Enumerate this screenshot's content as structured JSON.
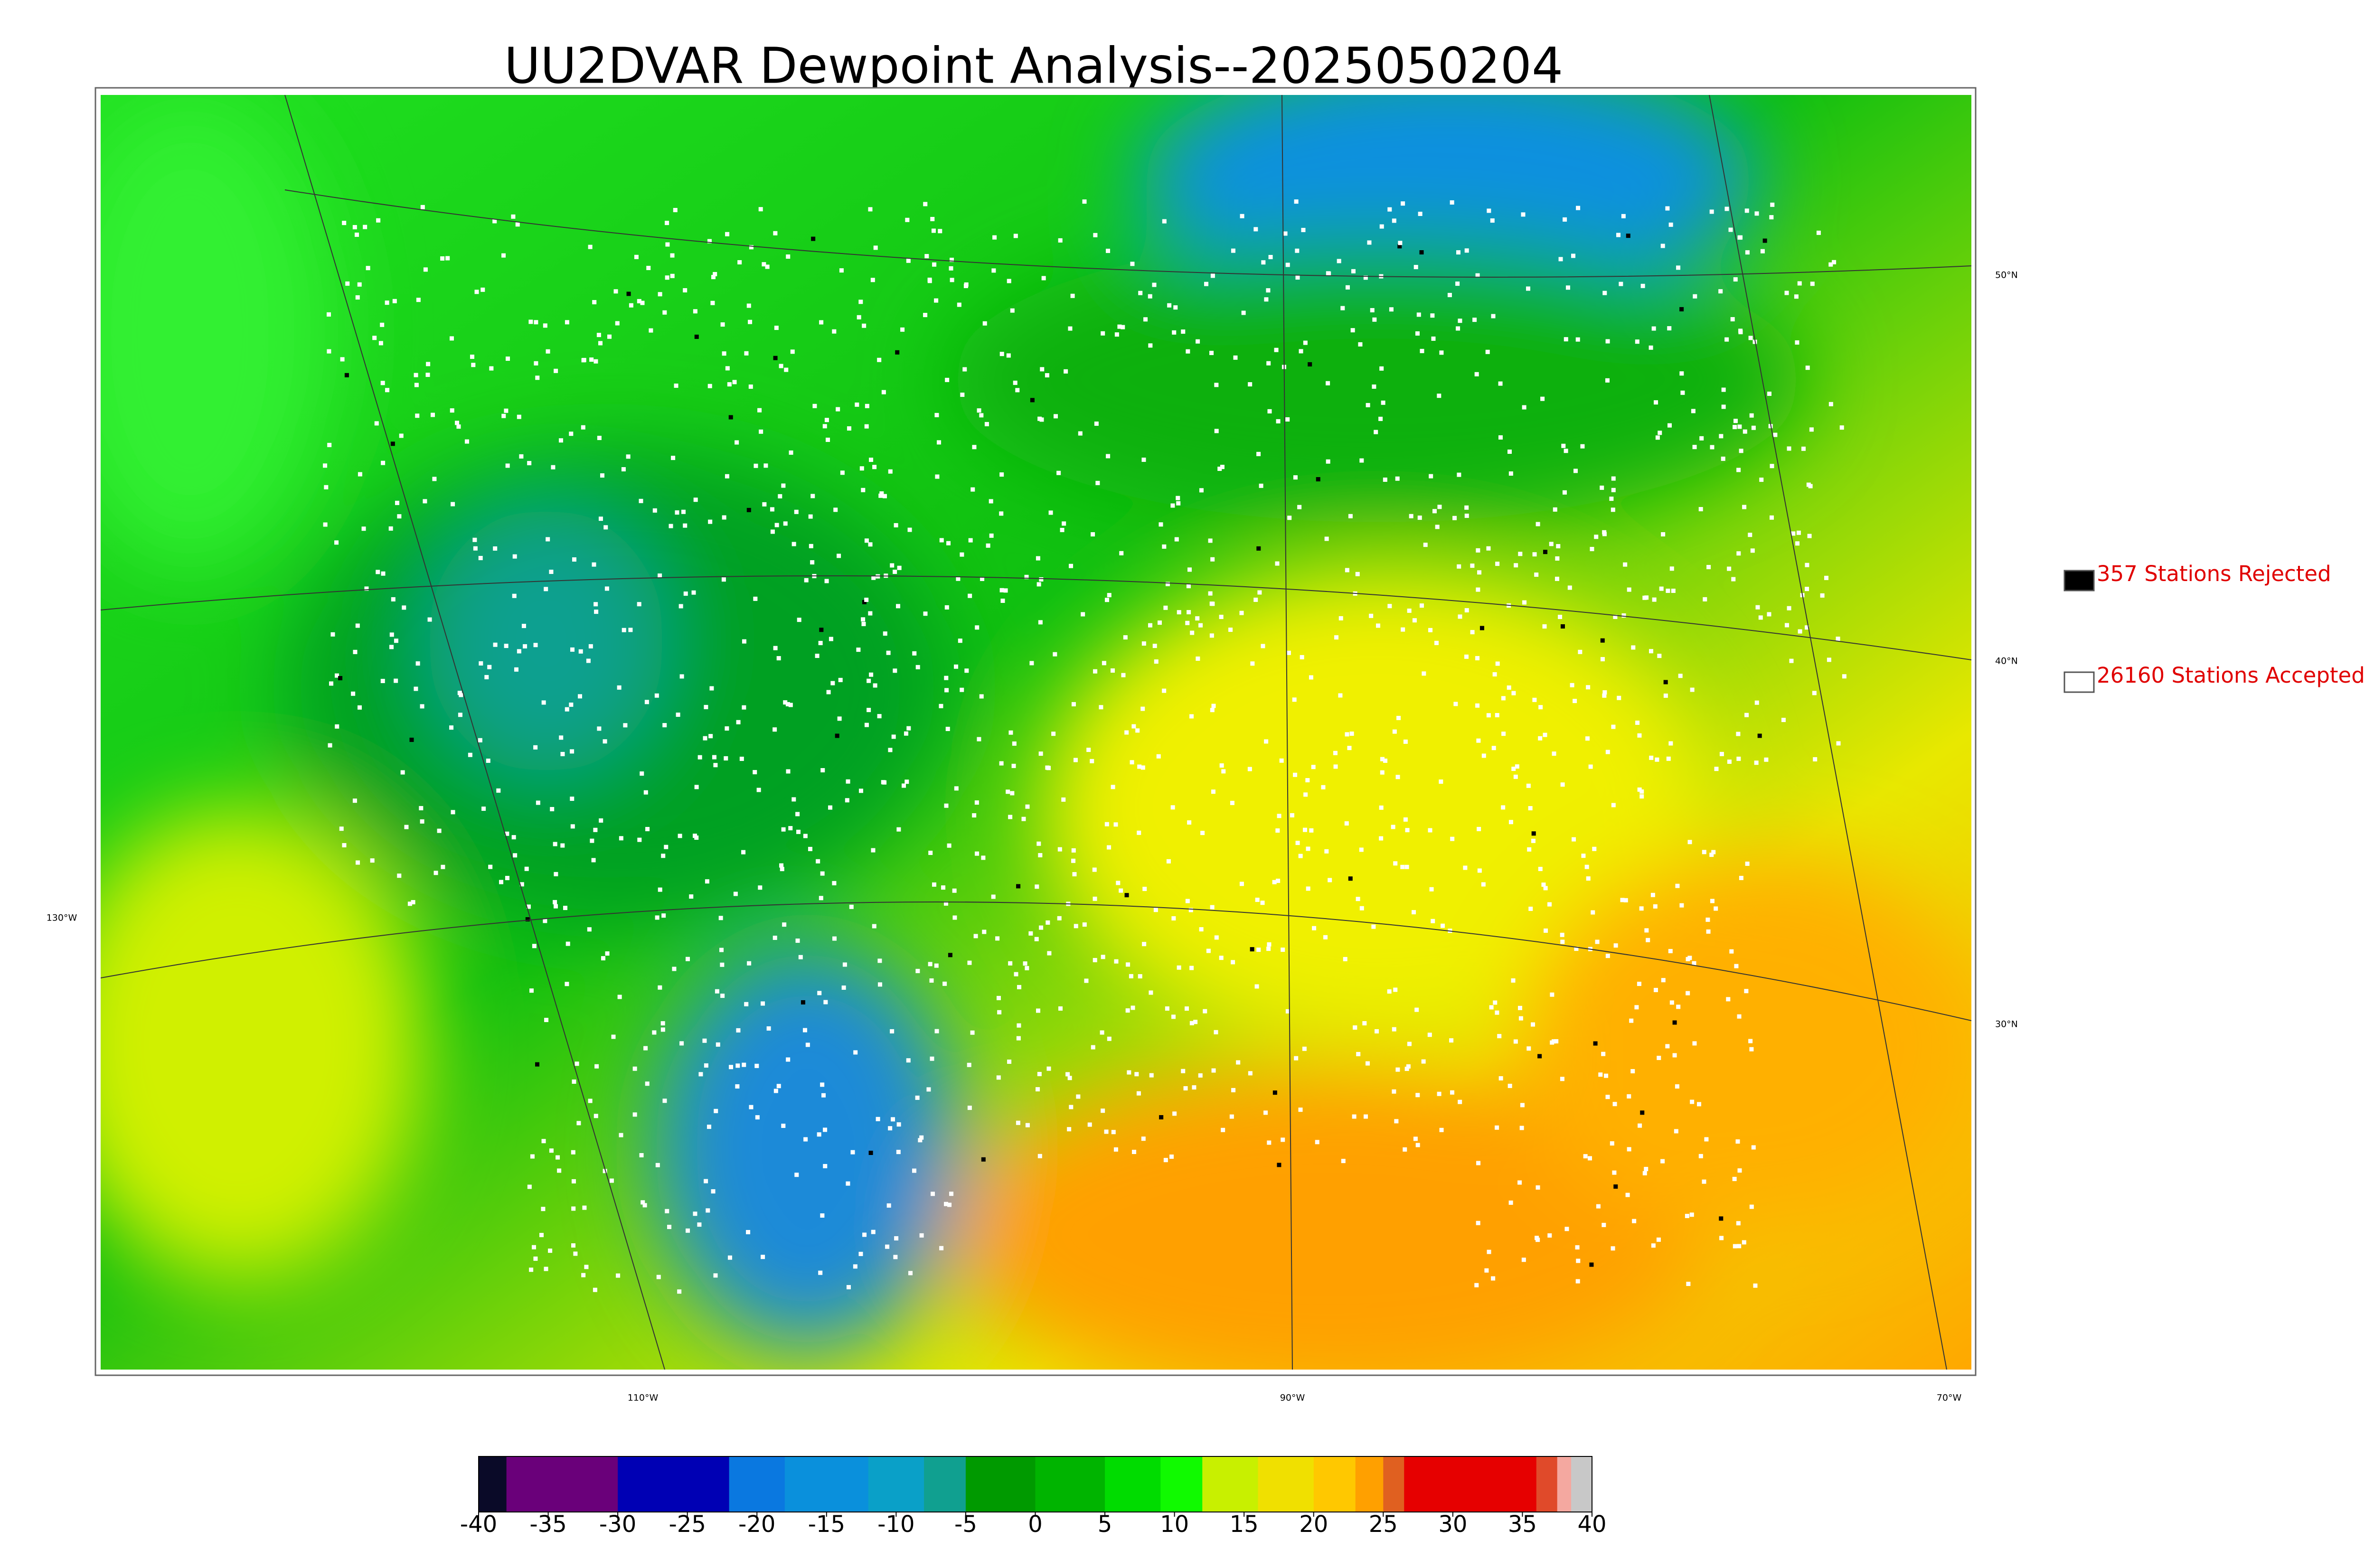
{
  "title": "UU2DVAR Dewpoint Analysis--2025050204",
  "legend": [
    {
      "label": "357 Stations Rejected",
      "color": "#000000"
    },
    {
      "label": "26160 Stations Accepted",
      "color": "#ffffff"
    }
  ],
  "graticule": {
    "lat_labels": [
      "50°N",
      "40°N",
      "30°N"
    ],
    "lon_labels": [
      "130°W",
      "110°W",
      "90°W",
      "70°W"
    ]
  },
  "colorbar": {
    "range": [
      -40,
      40
    ],
    "ticks": [
      -40,
      -35,
      -30,
      -25,
      -20,
      -15,
      -10,
      -5,
      0,
      5,
      10,
      15,
      20,
      25,
      30,
      35,
      40
    ],
    "stops": [
      {
        "value": -40,
        "color": "#0a0a28"
      },
      {
        "value": -38,
        "color": "#6a007a"
      },
      {
        "value": -30,
        "color": "#0000b4"
      },
      {
        "value": -22,
        "color": "#0a78e0"
      },
      {
        "value": -18,
        "color": "#0a90dc"
      },
      {
        "value": -12,
        "color": "#0aa0c8"
      },
      {
        "value": -8,
        "color": "#10a090"
      },
      {
        "value": -5,
        "color": "#009a00"
      },
      {
        "value": 0,
        "color": "#00b400"
      },
      {
        "value": 5,
        "color": "#00dc00"
      },
      {
        "value": 9,
        "color": "#10fa00"
      },
      {
        "value": 12,
        "color": "#c8f000"
      },
      {
        "value": 16,
        "color": "#f0e000"
      },
      {
        "value": 20,
        "color": "#ffc800"
      },
      {
        "value": 23,
        "color": "#ffa000"
      },
      {
        "value": 25,
        "color": "#e06020"
      },
      {
        "value": 26.5,
        "color": "#e60000"
      },
      {
        "value": 36,
        "color": "#e04a2a"
      },
      {
        "value": 37.5,
        "color": "#f4a8a0"
      },
      {
        "value": 38.5,
        "color": "#c8c8c8"
      }
    ]
  }
}
